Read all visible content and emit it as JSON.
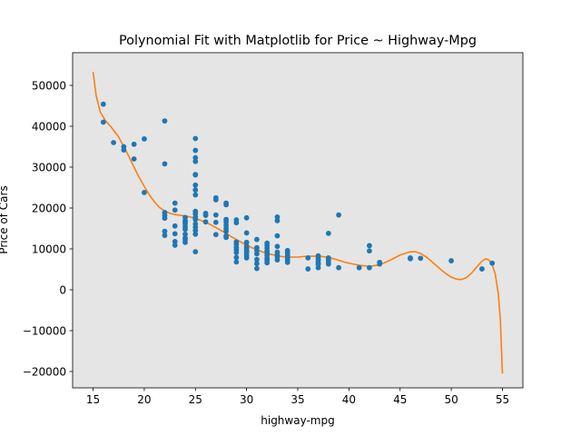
{
  "chart_data": {
    "type": "scatter",
    "title": "Polynomial Fit with Matplotlib for Price ~ Highway-Mpg",
    "xlabel": "highway-mpg",
    "ylabel": "Price of Cars",
    "xlim": [
      13.0,
      57.0
    ],
    "ylim": [
      -24000,
      58000
    ],
    "xticks": [
      15,
      20,
      25,
      30,
      35,
      40,
      45,
      50,
      55
    ],
    "yticks": [
      -20000,
      -10000,
      0,
      10000,
      20000,
      30000,
      40000,
      50000
    ],
    "background": "#e5e5e5",
    "grid": false,
    "colors": {
      "points": "#1f77b4",
      "fit": "#ff7f0e"
    },
    "series": [
      {
        "kind": "points",
        "marker": "circle",
        "points": [
          [
            16,
            45400
          ],
          [
            16,
            41000
          ],
          [
            17,
            36000
          ],
          [
            18,
            35000
          ],
          [
            18,
            34200
          ],
          [
            19,
            35600
          ],
          [
            19,
            32000
          ],
          [
            20,
            36900
          ],
          [
            20,
            23800
          ],
          [
            22,
            41300
          ],
          [
            22,
            30800
          ],
          [
            22,
            18900
          ],
          [
            22,
            18200
          ],
          [
            22,
            17500
          ],
          [
            22,
            14300
          ],
          [
            22,
            13300
          ],
          [
            23,
            21200
          ],
          [
            23,
            19500
          ],
          [
            23,
            15600
          ],
          [
            23,
            13700
          ],
          [
            23,
            11800
          ],
          [
            23,
            10900
          ],
          [
            24,
            17700
          ],
          [
            24,
            16900
          ],
          [
            24,
            16500
          ],
          [
            24,
            16100
          ],
          [
            24,
            15400
          ],
          [
            24,
            14800
          ],
          [
            24,
            13600
          ],
          [
            24,
            12700
          ],
          [
            24,
            12200
          ],
          [
            24,
            11600
          ],
          [
            25,
            37000
          ],
          [
            25,
            34100
          ],
          [
            25,
            32300
          ],
          [
            25,
            31400
          ],
          [
            25,
            28200
          ],
          [
            25,
            28100
          ],
          [
            25,
            25600
          ],
          [
            25,
            24400
          ],
          [
            25,
            23200
          ],
          [
            25,
            19200
          ],
          [
            25,
            18600
          ],
          [
            25,
            17800
          ],
          [
            25,
            17200
          ],
          [
            25,
            16100
          ],
          [
            25,
            15300
          ],
          [
            25,
            14500
          ],
          [
            25,
            13600
          ],
          [
            25,
            9300
          ],
          [
            26,
            18700
          ],
          [
            26,
            18200
          ],
          [
            26,
            16600
          ],
          [
            27,
            22500
          ],
          [
            27,
            22000
          ],
          [
            27,
            18300
          ],
          [
            27,
            16500
          ],
          [
            27,
            13500
          ],
          [
            28,
            21200
          ],
          [
            28,
            20800
          ],
          [
            28,
            17200
          ],
          [
            28,
            16600
          ],
          [
            28,
            15800
          ],
          [
            28,
            15000
          ],
          [
            28,
            14300
          ],
          [
            28,
            13200
          ],
          [
            28,
            12800
          ],
          [
            29,
            17100
          ],
          [
            29,
            16400
          ],
          [
            29,
            11700
          ],
          [
            29,
            11100
          ],
          [
            29,
            10400
          ],
          [
            29,
            9800
          ],
          [
            29,
            9100
          ],
          [
            29,
            7900
          ],
          [
            29,
            6800
          ],
          [
            30,
            17600
          ],
          [
            30,
            13900
          ],
          [
            30,
            11600
          ],
          [
            30,
            10700
          ],
          [
            30,
            10200
          ],
          [
            30,
            9700
          ],
          [
            30,
            9300
          ],
          [
            30,
            8900
          ],
          [
            30,
            8300
          ],
          [
            30,
            7800
          ],
          [
            31,
            12300
          ],
          [
            31,
            10300
          ],
          [
            31,
            9600
          ],
          [
            31,
            8800
          ],
          [
            31,
            7400
          ],
          [
            31,
            6400
          ],
          [
            31,
            5200
          ],
          [
            32,
            11400
          ],
          [
            32,
            10800
          ],
          [
            32,
            10200
          ],
          [
            32,
            9500
          ],
          [
            32,
            9000
          ],
          [
            32,
            8400
          ],
          [
            32,
            7700
          ],
          [
            32,
            7200
          ],
          [
            32,
            6600
          ],
          [
            33,
            17800
          ],
          [
            33,
            16900
          ],
          [
            33,
            13200
          ],
          [
            33,
            10600
          ],
          [
            33,
            9200
          ],
          [
            33,
            8600
          ],
          [
            33,
            8000
          ],
          [
            33,
            7300
          ],
          [
            34,
            9600
          ],
          [
            34,
            9000
          ],
          [
            34,
            8400
          ],
          [
            34,
            7800
          ],
          [
            34,
            7200
          ],
          [
            34,
            6700
          ],
          [
            36,
            7800
          ],
          [
            36,
            5100
          ],
          [
            37,
            8300
          ],
          [
            37,
            7700
          ],
          [
            37,
            7200
          ],
          [
            37,
            6600
          ],
          [
            37,
            6200
          ],
          [
            37,
            5400
          ],
          [
            38,
            13800
          ],
          [
            38,
            7800
          ],
          [
            38,
            7300
          ],
          [
            38,
            6800
          ],
          [
            38,
            6300
          ],
          [
            39,
            18300
          ],
          [
            39,
            5400
          ],
          [
            41,
            5400
          ],
          [
            42,
            10800
          ],
          [
            42,
            9500
          ],
          [
            42,
            5400
          ],
          [
            43,
            6700
          ],
          [
            43,
            6300
          ],
          [
            46,
            7800
          ],
          [
            46,
            7600
          ],
          [
            47,
            7700
          ],
          [
            50,
            7100
          ],
          [
            53,
            5100
          ],
          [
            54,
            6500
          ]
        ]
      },
      {
        "kind": "line",
        "points": [
          [
            15.0,
            53300
          ],
          [
            15.3,
            47500
          ],
          [
            15.7,
            43500
          ],
          [
            16.2,
            41400
          ],
          [
            16.8,
            39700
          ],
          [
            17.5,
            37400
          ],
          [
            18.0,
            35000
          ],
          [
            18.5,
            32600
          ],
          [
            19.0,
            30000
          ],
          [
            19.5,
            27500
          ],
          [
            20.0,
            25300
          ],
          [
            20.5,
            23200
          ],
          [
            21.0,
            21500
          ],
          [
            21.5,
            20100
          ],
          [
            22.0,
            19300
          ],
          [
            22.5,
            18700
          ],
          [
            23.0,
            18400
          ],
          [
            23.5,
            18200
          ],
          [
            24.0,
            18100
          ],
          [
            24.5,
            17800
          ],
          [
            25.0,
            17400
          ],
          [
            25.5,
            17000
          ],
          [
            26.0,
            16500
          ],
          [
            26.5,
            15900
          ],
          [
            27.0,
            15200
          ],
          [
            27.5,
            14500
          ],
          [
            28.0,
            13800
          ],
          [
            28.5,
            13000
          ],
          [
            29.0,
            12300
          ],
          [
            29.5,
            11600
          ],
          [
            30.0,
            10900
          ],
          [
            30.5,
            10300
          ],
          [
            31.0,
            9800
          ],
          [
            31.5,
            9300
          ],
          [
            32.0,
            8900
          ],
          [
            32.5,
            8600
          ],
          [
            33.0,
            8300
          ],
          [
            33.5,
            8100
          ],
          [
            34.0,
            8000
          ],
          [
            35.0,
            8000
          ],
          [
            36.0,
            8200
          ],
          [
            37.0,
            8200
          ],
          [
            37.5,
            8100
          ],
          [
            38.0,
            7900
          ],
          [
            38.5,
            7600
          ],
          [
            39.0,
            7200
          ],
          [
            39.5,
            6800
          ],
          [
            40.0,
            6500
          ],
          [
            41.0,
            6000
          ],
          [
            42.0,
            5700
          ],
          [
            43.0,
            6100
          ],
          [
            44.0,
            7200
          ],
          [
            45.0,
            8500
          ],
          [
            46.0,
            9300
          ],
          [
            46.5,
            9300
          ],
          [
            47.0,
            8900
          ],
          [
            47.5,
            8100
          ],
          [
            48.0,
            7100
          ],
          [
            48.5,
            6000
          ],
          [
            49.0,
            4900
          ],
          [
            49.5,
            3900
          ],
          [
            50.0,
            3100
          ],
          [
            50.5,
            2600
          ],
          [
            51.0,
            2500
          ],
          [
            51.5,
            3000
          ],
          [
            52.0,
            4100
          ],
          [
            52.5,
            5600
          ],
          [
            53.0,
            7000
          ],
          [
            53.4,
            7600
          ],
          [
            53.7,
            7200
          ],
          [
            54.0,
            6200
          ],
          [
            54.3,
            3800
          ],
          [
            54.6,
            -1000
          ],
          [
            54.8,
            -7500
          ],
          [
            55.0,
            -20500
          ]
        ]
      }
    ]
  }
}
